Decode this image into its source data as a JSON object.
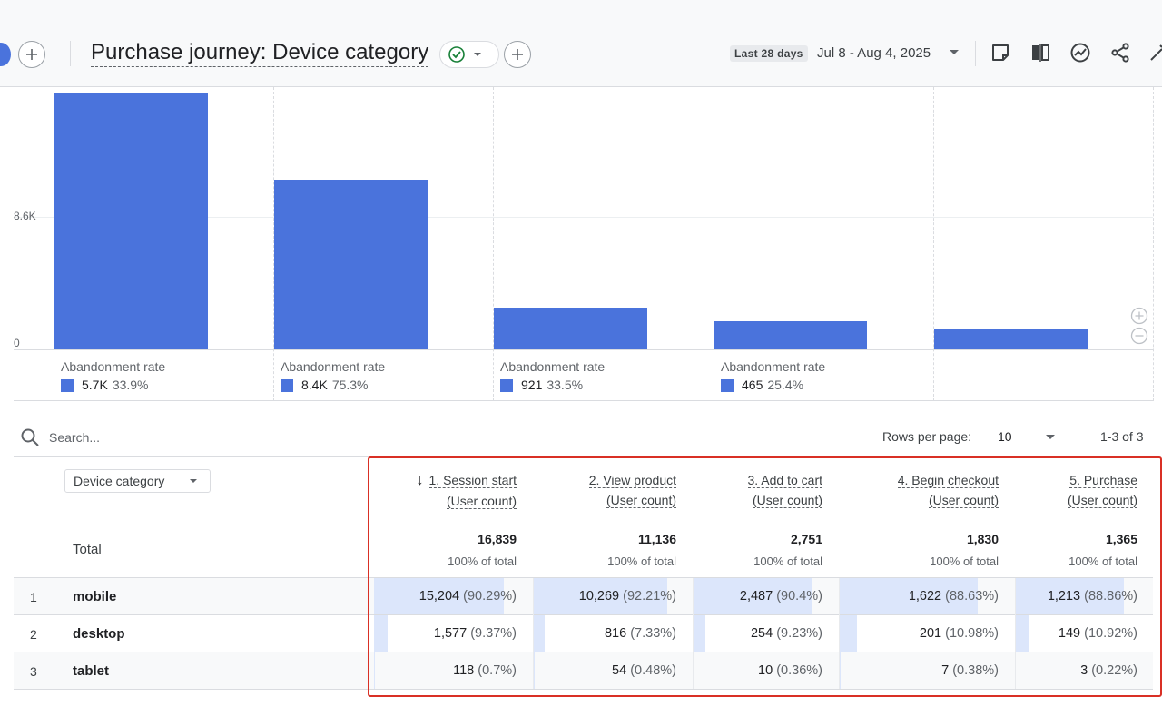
{
  "header": {
    "title": "Purchase journey: Device category",
    "date_badge": "Last 28 days",
    "date_range": "Jul 8 - Aug 4, 2025",
    "icons": [
      "add-comparison-icon",
      "check-circle-icon",
      "dropdown-icon",
      "add-icon",
      "notes-icon",
      "compare-icon",
      "insights-icon",
      "share-icon",
      "customize-icon"
    ]
  },
  "chart_data": {
    "type": "bar",
    "categories": [
      "1. Session start",
      "2. View product",
      "3. Add to cart",
      "4. Begin checkout",
      "5. Purchase"
    ],
    "series": [
      {
        "values": [
          16839,
          11136,
          2751,
          1830,
          1365
        ]
      }
    ],
    "y_ticks": [
      "0",
      "8.6K"
    ],
    "ylim": [
      0,
      17200
    ],
    "bar_color": "#4a73dc",
    "abandonment": [
      {
        "label": "Abandonment rate",
        "count": "5.7K",
        "rate": "33.9%"
      },
      {
        "label": "Abandonment rate",
        "count": "8.4K",
        "rate": "75.3%"
      },
      {
        "label": "Abandonment rate",
        "count": "921",
        "rate": "33.5%"
      },
      {
        "label": "Abandonment rate",
        "count": "465",
        "rate": "25.4%"
      }
    ]
  },
  "table": {
    "search_placeholder": "Search...",
    "rows_per_page_label": "Rows per page:",
    "rows_per_page": "10",
    "page_count": "1-3 of 3",
    "dimension": "Device category",
    "total_label": "Total",
    "columns": [
      {
        "title": "1. Session start",
        "sub": "(User count)",
        "total": "16,839",
        "pct": "100% of total",
        "sorted": true,
        "sort_icon": "↓"
      },
      {
        "title": "2. View product",
        "sub": "(User count)",
        "total": "11,136",
        "pct": "100% of total"
      },
      {
        "title": "3. Add to cart",
        "sub": "(User count)",
        "total": "2,751",
        "pct": "100% of total"
      },
      {
        "title": "4. Begin checkout",
        "sub": "(User count)",
        "total": "1,830",
        "pct": "100% of total"
      },
      {
        "title": "5. Purchase",
        "sub": "(User count)",
        "total": "1,365",
        "pct": "100% of total"
      }
    ],
    "rows": [
      {
        "index": "1",
        "name": "mobile",
        "cells": [
          {
            "value": "15,204",
            "pct": "(90.29%)",
            "share": 0.9029
          },
          {
            "value": "10,269",
            "pct": "(92.21%)",
            "share": 0.9221
          },
          {
            "value": "2,487",
            "pct": "(90.4%)",
            "share": 0.904
          },
          {
            "value": "1,622",
            "pct": "(88.63%)",
            "share": 0.8863
          },
          {
            "value": "1,213",
            "pct": "(88.86%)",
            "share": 0.8886
          }
        ]
      },
      {
        "index": "2",
        "name": "desktop",
        "cells": [
          {
            "value": "1,577",
            "pct": "(9.37%)",
            "share": 0.0937
          },
          {
            "value": "816",
            "pct": "(7.33%)",
            "share": 0.0733
          },
          {
            "value": "254",
            "pct": "(9.23%)",
            "share": 0.0923
          },
          {
            "value": "201",
            "pct": "(10.98%)",
            "share": 0.1098
          },
          {
            "value": "149",
            "pct": "(10.92%)",
            "share": 0.1092
          }
        ]
      },
      {
        "index": "3",
        "name": "tablet",
        "cells": [
          {
            "value": "118",
            "pct": "(0.7%)",
            "share": 0.007
          },
          {
            "value": "54",
            "pct": "(0.48%)",
            "share": 0.0048
          },
          {
            "value": "10",
            "pct": "(0.36%)",
            "share": 0.0036
          },
          {
            "value": "7",
            "pct": "(0.38%)",
            "share": 0.0038
          },
          {
            "value": "3",
            "pct": "(0.22%)",
            "share": 0.0022
          }
        ]
      }
    ]
  }
}
